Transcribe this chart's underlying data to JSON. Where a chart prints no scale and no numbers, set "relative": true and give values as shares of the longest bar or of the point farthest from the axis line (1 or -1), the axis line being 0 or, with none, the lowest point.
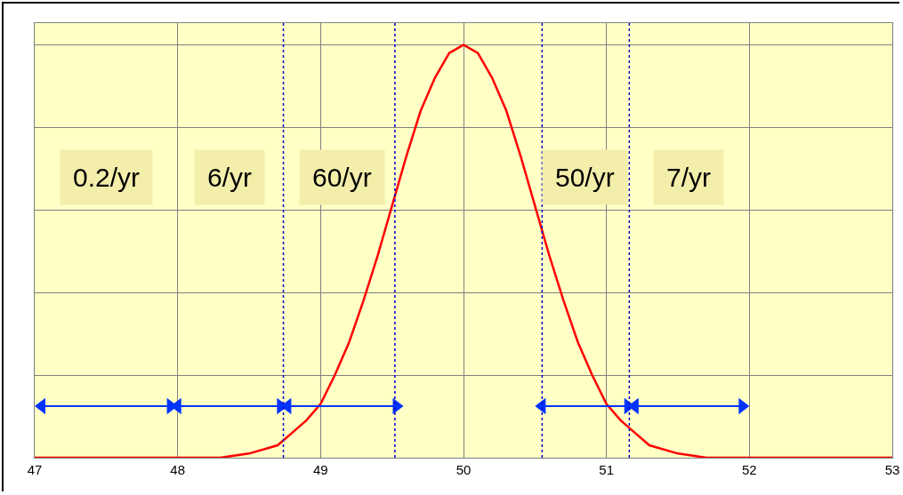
{
  "chart_data": {
    "type": "line",
    "relative": true,
    "x": [
      47,
      47.5,
      48,
      48.3,
      48.5,
      48.7,
      48.8,
      48.9,
      49,
      49.1,
      49.2,
      49.3,
      49.4,
      49.5,
      49.6,
      49.7,
      49.8,
      49.9,
      50,
      50.1,
      50.2,
      50.3,
      50.4,
      50.5,
      50.6,
      50.7,
      50.8,
      50.9,
      51,
      51.1,
      51.2,
      51.3,
      51.5,
      51.7,
      52,
      52.5,
      53
    ],
    "series": [
      {
        "color": "#ff0000",
        "values": [
          0,
          0,
          0,
          0,
          0.01,
          0.03,
          0.06,
          0.09,
          0.13,
          0.2,
          0.28,
          0.38,
          0.49,
          0.61,
          0.73,
          0.84,
          0.92,
          0.98,
          1,
          0.98,
          0.92,
          0.84,
          0.73,
          0.61,
          0.49,
          0.38,
          0.28,
          0.2,
          0.13,
          0.09,
          0.06,
          0.03,
          0.01,
          0,
          0,
          0,
          0
        ]
      },
      {
        "color": "#0033ff",
        "marker": "triangle",
        "x": [
          47.05,
          47.95
        ],
        "values": [
          0.125,
          0.125
        ]
      },
      {
        "color": "#0033ff",
        "marker": "triangle",
        "x": [
          48.0,
          48.72
        ],
        "values": [
          0.125,
          0.125
        ]
      },
      {
        "color": "#0033ff",
        "marker": "triangle",
        "x": [
          48.77,
          49.53
        ],
        "values": [
          0.125,
          0.125
        ]
      },
      {
        "color": "#0033ff",
        "marker": "triangle",
        "x": [
          50.55,
          51.15
        ],
        "values": [
          0.125,
          0.125
        ]
      },
      {
        "color": "#0033ff",
        "marker": "triangle",
        "x": [
          51.2,
          51.95
        ],
        "values": [
          0.125,
          0.125
        ]
      }
    ],
    "xlim": [
      47,
      53
    ],
    "xticks": [
      47,
      48,
      49,
      50,
      51,
      52,
      53
    ],
    "grid": true,
    "ref_lines": [
      {
        "axis": "x",
        "value": 48.74,
        "color": "#0000cc",
        "line_style": "dotted"
      },
      {
        "axis": "x",
        "value": 49.52,
        "color": "#0000cc",
        "line_style": "dotted"
      },
      {
        "axis": "x",
        "value": 50.55,
        "color": "#0000cc",
        "line_style": "dotted"
      },
      {
        "axis": "x",
        "value": 51.16,
        "color": "#0000cc",
        "line_style": "dotted"
      }
    ],
    "annotations": [
      "0.2/yr",
      "6/yr",
      "60/yr",
      "50/yr",
      "7/yr"
    ]
  }
}
